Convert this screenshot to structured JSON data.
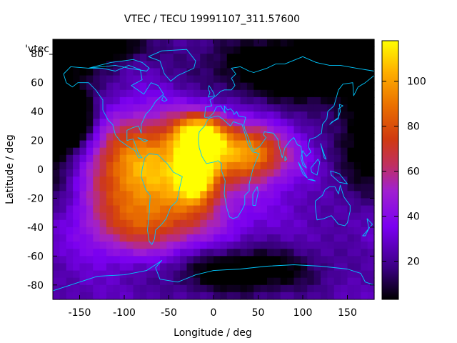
{
  "chart_data": {
    "type": "heatmap",
    "title": "VTEC / TECU 19991107_311.57600",
    "xlabel": "Longitude / deg",
    "ylabel": "Latitude / deg",
    "xlim": [
      -180,
      180
    ],
    "ylim": [
      -90,
      90
    ],
    "x_ticks": [
      -150,
      -100,
      -50,
      0,
      50,
      100,
      150
    ],
    "y_ticks": [
      -80,
      -60,
      -40,
      -20,
      0,
      20,
      40,
      60,
      80
    ],
    "colorbar": {
      "range": [
        3,
        118
      ],
      "ticks": [
        20,
        40,
        60,
        80,
        100
      ],
      "palette": "black-purple-red-orange-yellow"
    },
    "legend_label": "'vtec_",
    "grid": false,
    "overlay": "coastlines",
    "overlay_color": "#00c8ff",
    "background_level": 26,
    "blobs": [
      {
        "lon": -15,
        "lat": 22,
        "value": 112,
        "sigma_lon": 20,
        "sigma_lat": 11
      },
      {
        "lon": 40,
        "lat": 12,
        "value": 85,
        "sigma_lon": 28,
        "sigma_lat": 13
      },
      {
        "lon": -20,
        "lat": -5,
        "value": 92,
        "sigma_lon": 15,
        "sigma_lat": 12
      },
      {
        "lon": -55,
        "lat": -5,
        "value": 80,
        "sigma_lon": 60,
        "sigma_lat": 28
      },
      {
        "lon": -90,
        "lat": 5,
        "value": 58,
        "sigma_lon": 40,
        "sigma_lat": 22
      },
      {
        "lon": -80,
        "lat": -40,
        "value": 55,
        "sigma_lon": 50,
        "sigma_lat": 15
      },
      {
        "lon": 80,
        "lat": 5,
        "value": 35,
        "sigma_lon": 25,
        "sigma_lat": 12
      },
      {
        "lon": -160,
        "lat": 35,
        "value": -20,
        "sigma_lon": 18,
        "sigma_lat": 12
      },
      {
        "lon": 180,
        "lat": 15,
        "value": -8,
        "sigma_lon": 30,
        "sigma_lat": 30
      },
      {
        "lon": 100,
        "lat": 70,
        "value": -12,
        "sigma_lon": 80,
        "sigma_lat": 18
      },
      {
        "lon": -140,
        "lat": 85,
        "value": -16,
        "sigma_lon": 40,
        "sigma_lat": 8
      },
      {
        "lon": 30,
        "lat": -70,
        "value": -8,
        "sigma_lon": 60,
        "sigma_lat": 12
      }
    ]
  }
}
